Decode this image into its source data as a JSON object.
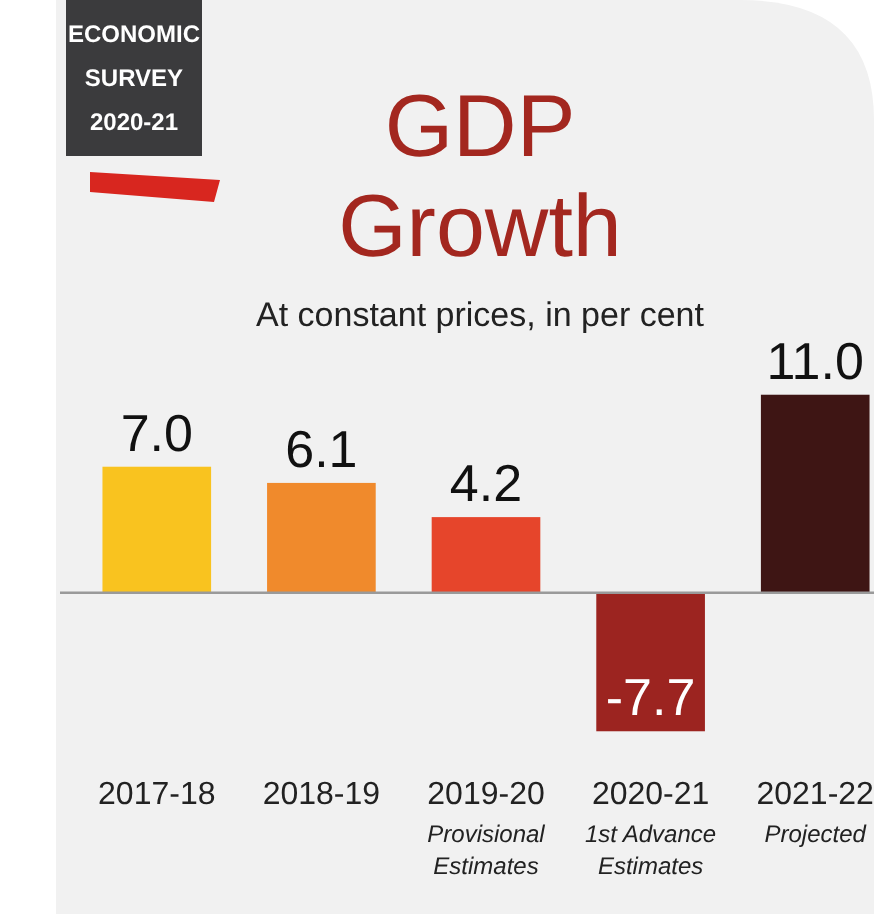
{
  "chart_data": {
    "type": "bar",
    "title": "GDP\nGrowth",
    "subtitle": "At constant prices, in per cent",
    "annotations": [
      "ECONOMIC\nSURVEY\n2020-21"
    ],
    "categories": [
      "2017-18",
      "2018-19",
      "2019-20\nProvisional\nEstimates",
      "2020-21\n1st Advance\nEstimates",
      "2021-22\nProjected"
    ],
    "values": [
      7.0,
      6.1,
      4.2,
      -7.7,
      11.0
    ],
    "colors": [
      "#f9c31f",
      "#f08a2c",
      "#e6452b",
      "#9c2420",
      "#3e1514"
    ],
    "value_labels": [
      "7.0",
      "6.1",
      "4.2",
      "-7.7",
      "11.0"
    ]
  }
}
